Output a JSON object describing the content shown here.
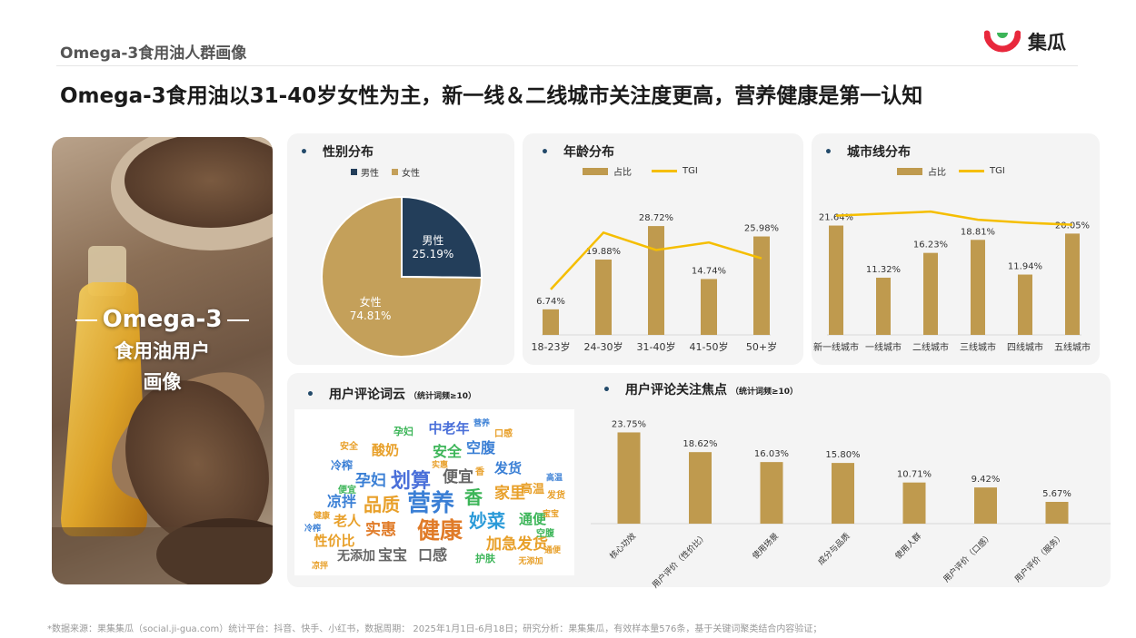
{
  "page": {
    "section_label": "Omega-3食用油人群画像",
    "headline": "Omega-3食用油以31-40岁女性为主，新一线＆二线城市关注度更高，营养健康是第一认知",
    "footer": "*数据来源：果集集瓜（social.ji-gua.com）统计平台：抖音、快手、小红书，数据周期： 2025年1月1日-6月18日；研究分析：果集集瓜，有效样本量576条，基于关键词聚类结合内容验证；"
  },
  "brand": {
    "name": "集瓜",
    "color": "#e8283c"
  },
  "photo": {
    "title_line1": "Omega-3",
    "title_line2": "食用油用户",
    "title_line3": "画像"
  },
  "colors": {
    "bar": "#bf9a4e",
    "tgi": "#f5be00",
    "male": "#233e5a",
    "female": "#c4a05a",
    "bullet": "#234a6a"
  },
  "panels": {
    "gender": {
      "title": "性别分布",
      "legend_male": "男性",
      "legend_female": "女性"
    },
    "age": {
      "title": "年龄分布",
      "legend_share": "占比",
      "legend_tgi": "TGI"
    },
    "city": {
      "title": "城市线分布",
      "legend_share": "占比",
      "legend_tgi": "TGI"
    },
    "cloud": {
      "title": "用户评论词云",
      "note": "（统计词频≥10）"
    },
    "focus": {
      "title": "用户评论关注焦点",
      "note": "（统计词频≥10）"
    }
  },
  "chart_data": [
    {
      "type": "pie",
      "title": "性别分布",
      "categories": [
        "男性",
        "女性"
      ],
      "values": [
        25.19,
        74.81
      ],
      "value_labels": [
        "25.19%",
        "74.81%"
      ],
      "legend": "top"
    },
    {
      "type": "bar",
      "title": "年龄分布",
      "categories": [
        "18-23岁",
        "24-30岁",
        "31-40岁",
        "41-50岁",
        "50+岁"
      ],
      "series": [
        {
          "name": "占比",
          "values": [
            6.74,
            19.88,
            28.72,
            14.74,
            25.98
          ],
          "labels": [
            "6.74%",
            "19.88%",
            "28.72%",
            "14.74%",
            "25.98%"
          ]
        },
        {
          "name": "TGI",
          "type": "line",
          "values": [
            60,
            135,
            112,
            122,
            101
          ]
        }
      ],
      "ylim": [
        0,
        40
      ],
      "tgi_ylim": [
        0,
        200
      ],
      "legend": "top"
    },
    {
      "type": "bar",
      "title": "城市线分布",
      "categories": [
        "新一线城市",
        "一线城市",
        "二线城市",
        "三线城市",
        "四线城市",
        "五线城市"
      ],
      "series": [
        {
          "name": "占比",
          "values": [
            21.64,
            11.32,
            16.23,
            18.81,
            11.94,
            20.05
          ],
          "labels": [
            "21.64%",
            "11.32%",
            "16.23%",
            "18.81%",
            "11.94%",
            "20.05%"
          ]
        },
        {
          "name": "TGI",
          "type": "line",
          "values": [
            118,
            120,
            122,
            114,
            111,
            109
          ]
        }
      ],
      "ylim": [
        0,
        30
      ],
      "tgi_ylim": [
        0,
        150
      ],
      "legend": "top"
    },
    {
      "type": "bar",
      "title": "用户评论关注焦点",
      "categories": [
        "核心功效",
        "用户评价（性价比）",
        "使用场景",
        "成分与品质",
        "使用人群",
        "用户评价（口感）",
        "用户评价（服务）"
      ],
      "values": [
        23.75,
        18.62,
        16.03,
        15.8,
        10.71,
        9.42,
        5.67
      ],
      "labels": [
        "23.75%",
        "18.62%",
        "16.03%",
        "15.80%",
        "10.71%",
        "9.42%",
        "5.67%"
      ],
      "ylim": [
        0,
        30
      ]
    }
  ],
  "word_cloud": [
    {
      "text": "营养",
      "color": "#3a7fd5"
    },
    {
      "text": "健康",
      "color": "#e07b28"
    },
    {
      "text": "划算",
      "color": "#4a6fd9"
    },
    {
      "text": "品质",
      "color": "#e8a02a"
    },
    {
      "text": "妙菜",
      "color": "#2a9ad8"
    },
    {
      "text": "香",
      "color": "#3cb558"
    },
    {
      "text": "便宜",
      "color": "#666666"
    },
    {
      "text": "实惠",
      "color": "#e07b28"
    },
    {
      "text": "宝宝",
      "color": "#666666"
    },
    {
      "text": "口感",
      "color": "#666666"
    },
    {
      "text": "加急发货",
      "color": "#e8a02a"
    },
    {
      "text": "家里",
      "color": "#e8a02a"
    },
    {
      "text": "发货",
      "color": "#3a7fd5"
    },
    {
      "text": "安全",
      "color": "#3cb558"
    },
    {
      "text": "空腹",
      "color": "#3a7fd5"
    },
    {
      "text": "中老年",
      "color": "#4a6fd9"
    },
    {
      "text": "孕妇",
      "color": "#3a7fd5"
    },
    {
      "text": "凉拌",
      "color": "#3a7fd5"
    },
    {
      "text": "老人",
      "color": "#e8a02a"
    },
    {
      "text": "通便",
      "color": "#3cb558"
    },
    {
      "text": "性价比",
      "color": "#e8a02a"
    },
    {
      "text": "无添加",
      "color": "#666666"
    },
    {
      "text": "酸奶",
      "color": "#e8a02a"
    },
    {
      "text": "高温",
      "color": "#e8a02a"
    },
    {
      "text": "冷榨",
      "color": "#3a7fd5"
    },
    {
      "text": "护肤",
      "color": "#3cb558"
    },
    {
      "text": "实惠",
      "color": "#e8a02a"
    },
    {
      "text": "营养",
      "color": "#3a7fd5"
    },
    {
      "text": "健康",
      "color": "#e8a02a"
    },
    {
      "text": "发货",
      "color": "#e8a02a"
    },
    {
      "text": "空腹",
      "color": "#3cb558"
    },
    {
      "text": "口感",
      "color": "#e8a02a"
    },
    {
      "text": "孕妇",
      "color": "#3cb558"
    },
    {
      "text": "安全",
      "color": "#e8a02a"
    },
    {
      "text": "宝宝",
      "color": "#e8a02a"
    },
    {
      "text": "冷榨",
      "color": "#3a7fd5"
    },
    {
      "text": "凉拌",
      "color": "#e8a02a"
    },
    {
      "text": "无添加",
      "color": "#e8a02a"
    },
    {
      "text": "高温",
      "color": "#3a7fd5"
    },
    {
      "text": "通便",
      "color": "#e8a02a"
    },
    {
      "text": "香",
      "color": "#e8a02a"
    },
    {
      "text": "便宜",
      "color": "#3cb558"
    }
  ]
}
